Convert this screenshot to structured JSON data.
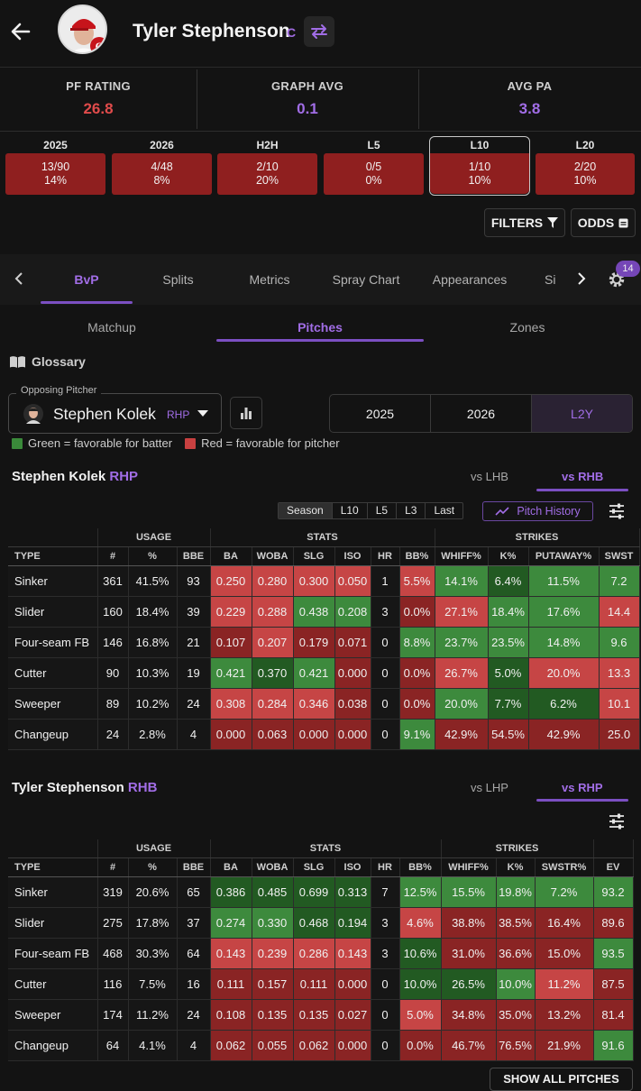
{
  "header": {
    "player_name": "Tyler Stephenson",
    "position": "C",
    "icons": [
      "back-arrow-icon",
      "reds-logo",
      "swap-icon"
    ]
  },
  "ratings": [
    {
      "label": "PF RATING",
      "value": "26.8",
      "color": "#e04b4b"
    },
    {
      "label": "GRAPH AVG",
      "value": "0.1",
      "color": "#a16de6"
    },
    {
      "label": "AVG PA",
      "value": "3.8",
      "color": "#a16de6"
    }
  ],
  "splits": [
    {
      "label": "2025",
      "value": "13/90",
      "pct": "14%"
    },
    {
      "label": "2026",
      "value": "4/48",
      "pct": "8%"
    },
    {
      "label": "H2H",
      "value": "2/10",
      "pct": "20%"
    },
    {
      "label": "L5",
      "value": "0/5",
      "pct": "0%"
    },
    {
      "label": "L10",
      "value": "1/10",
      "pct": "10%"
    },
    {
      "label": "L20",
      "value": "2/20",
      "pct": "10%"
    }
  ],
  "toolbar": {
    "filters": "FILTERS",
    "odds": "ODDS"
  },
  "tabs": [
    "BvP",
    "Splits",
    "Metrics",
    "Spray Chart",
    "Appearances",
    "Si"
  ],
  "settings_badge": "14",
  "subtabs": [
    "Matchup",
    "Pitches",
    "Zones"
  ],
  "glossary": "Glossary",
  "opponent": {
    "label": "Opposing Pitcher",
    "name": "Stephen Kolek",
    "hand": "RHP"
  },
  "seasons": [
    "2025",
    "2026",
    "L2Y"
  ],
  "legend": {
    "green": "Green = favorable for batter",
    "red": "Red = favorable for pitcher",
    "green_color": "#3a8a3a",
    "red_color": "#c84040"
  },
  "pitcher_section": {
    "name": "Stephen Kolek",
    "hand": "RHP",
    "vs": [
      "vs LHB",
      "vs RHB"
    ],
    "ranges": [
      "Season",
      "L10",
      "L5",
      "L3",
      "Last"
    ],
    "pitch_history": "Pitch History",
    "groups": [
      "USAGE",
      "STATS",
      "STRIKES"
    ],
    "columns": [
      "TYPE",
      "#",
      "%",
      "BBE",
      "BA",
      "WOBA",
      "SLG",
      "ISO",
      "HR",
      "BB%",
      "WHIFF%",
      "K%",
      "PUTAWAY%",
      "SWST"
    ],
    "rows": [
      [
        "Sinker",
        "361",
        "41.5%",
        "93",
        "0.250",
        "0.280",
        "0.300",
        "0.050",
        "1",
        "5.5%",
        "14.1%",
        "6.4%",
        "11.5%",
        "7.2"
      ],
      [
        "Slider",
        "160",
        "18.4%",
        "39",
        "0.229",
        "0.288",
        "0.438",
        "0.208",
        "3",
        "0.0%",
        "27.1%",
        "18.4%",
        "17.6%",
        "14.4"
      ],
      [
        "Four-seam FB",
        "146",
        "16.8%",
        "21",
        "0.107",
        "0.207",
        "0.179",
        "0.071",
        "0",
        "8.8%",
        "23.7%",
        "23.5%",
        "14.8%",
        "9.6"
      ],
      [
        "Cutter",
        "90",
        "10.3%",
        "19",
        "0.421",
        "0.370",
        "0.421",
        "0.000",
        "0",
        "0.0%",
        "26.7%",
        "5.0%",
        "20.0%",
        "13.3"
      ],
      [
        "Sweeper",
        "89",
        "10.2%",
        "24",
        "0.308",
        "0.284",
        "0.346",
        "0.038",
        "0",
        "0.0%",
        "20.0%",
        "7.7%",
        "6.2%",
        "10.1"
      ],
      [
        "Changeup",
        "24",
        "2.8%",
        "4",
        "0.000",
        "0.063",
        "0.000",
        "0.000",
        "0",
        "9.1%",
        "42.9%",
        "54.5%",
        "42.9%",
        "25.0"
      ]
    ],
    "colors": [
      [
        "n",
        "n",
        "n",
        "n",
        "r",
        "r",
        "r",
        "r",
        "n",
        "r",
        "g",
        "dg",
        "g",
        "g"
      ],
      [
        "n",
        "n",
        "n",
        "n",
        "r",
        "r",
        "g",
        "g",
        "n",
        "dr",
        "r",
        "g",
        "g",
        "r"
      ],
      [
        "n",
        "n",
        "n",
        "n",
        "dr",
        "r",
        "dr",
        "dr",
        "n",
        "g",
        "g",
        "g",
        "g",
        "g"
      ],
      [
        "n",
        "n",
        "n",
        "n",
        "g",
        "dg",
        "g",
        "dr",
        "n",
        "dr",
        "r",
        "dg",
        "r",
        "r"
      ],
      [
        "n",
        "n",
        "n",
        "n",
        "r",
        "r",
        "r",
        "dr",
        "n",
        "dr",
        "g",
        "dg",
        "dg",
        "r"
      ],
      [
        "n",
        "n",
        "n",
        "n",
        "dr",
        "dr",
        "dr",
        "dr",
        "n",
        "g",
        "dr",
        "dr",
        "dr",
        "dr"
      ]
    ]
  },
  "batter_section": {
    "name": "Tyler Stephenson",
    "hand": "RHB",
    "vs": [
      "vs LHP",
      "vs RHP"
    ],
    "groups": [
      "USAGE",
      "STATS",
      "STRIKES"
    ],
    "columns": [
      "TYPE",
      "#",
      "%",
      "BBE",
      "BA",
      "WOBA",
      "SLG",
      "ISO",
      "HR",
      "BB%",
      "WHIFF%",
      "K%",
      "SWSTR%",
      "EV"
    ],
    "rows": [
      [
        "Sinker",
        "319",
        "20.6%",
        "65",
        "0.386",
        "0.485",
        "0.699",
        "0.313",
        "7",
        "12.5%",
        "15.5%",
        "19.8%",
        "7.2%",
        "93.2"
      ],
      [
        "Slider",
        "275",
        "17.8%",
        "37",
        "0.274",
        "0.330",
        "0.468",
        "0.194",
        "3",
        "4.6%",
        "38.8%",
        "38.5%",
        "16.4%",
        "89.6"
      ],
      [
        "Four-seam FB",
        "468",
        "30.3%",
        "64",
        "0.143",
        "0.239",
        "0.286",
        "0.143",
        "3",
        "10.6%",
        "31.0%",
        "36.6%",
        "15.0%",
        "93.5"
      ],
      [
        "Cutter",
        "116",
        "7.5%",
        "16",
        "0.111",
        "0.157",
        "0.111",
        "0.000",
        "0",
        "10.0%",
        "26.5%",
        "10.0%",
        "11.2%",
        "87.5"
      ],
      [
        "Sweeper",
        "174",
        "11.2%",
        "24",
        "0.108",
        "0.135",
        "0.135",
        "0.027",
        "0",
        "5.0%",
        "34.8%",
        "35.0%",
        "13.2%",
        "81.4"
      ],
      [
        "Changeup",
        "64",
        "4.1%",
        "4",
        "0.062",
        "0.055",
        "0.062",
        "0.000",
        "0",
        "0.0%",
        "46.7%",
        "76.5%",
        "21.9%",
        "91.6"
      ]
    ],
    "colors": [
      [
        "n",
        "n",
        "n",
        "n",
        "dg",
        "dg",
        "dg",
        "dg",
        "n",
        "g",
        "g",
        "g",
        "g",
        "g"
      ],
      [
        "n",
        "n",
        "n",
        "n",
        "g",
        "g",
        "dg",
        "dg",
        "n",
        "r",
        "dr",
        "dr",
        "dr",
        "dr"
      ],
      [
        "n",
        "n",
        "n",
        "n",
        "r",
        "r",
        "r",
        "r",
        "n",
        "dg",
        "dr",
        "dr",
        "dr",
        "g"
      ],
      [
        "n",
        "n",
        "n",
        "n",
        "dr",
        "dr",
        "dr",
        "dr",
        "n",
        "dg",
        "dg",
        "g",
        "r",
        "dr"
      ],
      [
        "n",
        "n",
        "n",
        "n",
        "dr",
        "dr",
        "dr",
        "dr",
        "n",
        "r",
        "dr",
        "dr",
        "dr",
        "dr"
      ],
      [
        "n",
        "n",
        "n",
        "n",
        "dr",
        "dr",
        "dr",
        "dr",
        "n",
        "dr",
        "dr",
        "dr",
        "dr",
        "g"
      ]
    ]
  },
  "show_all": "SHOW ALL PITCHES"
}
